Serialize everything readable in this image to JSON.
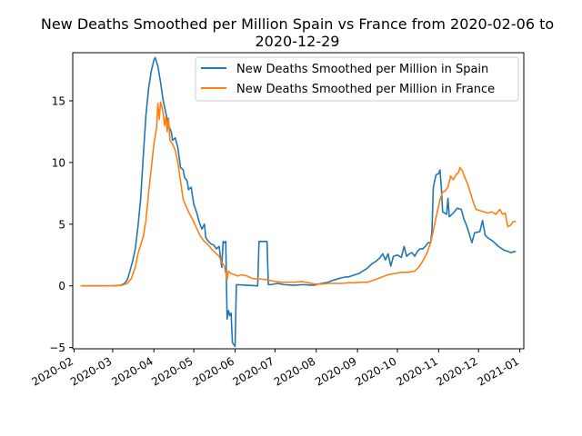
{
  "chart_data": {
    "type": "line",
    "title_line1": "New Deaths Smoothed per Million Spain vs France from 2020-02-06 to",
    "title_line2": "2020-12-29",
    "xlabel": "",
    "ylabel": "",
    "xlim": [
      "2020-01-31",
      "2021-01-04"
    ],
    "ylim": [
      -5.1,
      18.9
    ],
    "y_ticks": [
      -5,
      0,
      5,
      10,
      15
    ],
    "x_ticks": [
      {
        "date": "2020-02-01",
        "label": "2020-02"
      },
      {
        "date": "2020-03-01",
        "label": "2020-03"
      },
      {
        "date": "2020-04-01",
        "label": "2020-04"
      },
      {
        "date": "2020-05-01",
        "label": "2020-05"
      },
      {
        "date": "2020-06-01",
        "label": "2020-06"
      },
      {
        "date": "2020-07-01",
        "label": "2020-07"
      },
      {
        "date": "2020-08-01",
        "label": "2020-08"
      },
      {
        "date": "2020-09-01",
        "label": "2020-09"
      },
      {
        "date": "2020-10-01",
        "label": "2020-10"
      },
      {
        "date": "2020-11-01",
        "label": "2020-11"
      },
      {
        "date": "2020-12-01",
        "label": "2020-12"
      },
      {
        "date": "2021-01-01",
        "label": "2021-01"
      }
    ],
    "grid": false,
    "legend_position": "top-right",
    "series": [
      {
        "name": "New Deaths Smoothed per Million in Spain",
        "color": "#1f77b4",
        "points": [
          [
            "2020-02-06",
            0.0
          ],
          [
            "2020-03-01",
            0.0
          ],
          [
            "2020-03-07",
            0.05
          ],
          [
            "2020-03-10",
            0.2
          ],
          [
            "2020-03-12",
            0.5
          ],
          [
            "2020-03-14",
            1.2
          ],
          [
            "2020-03-16",
            2.0
          ],
          [
            "2020-03-18",
            3.0
          ],
          [
            "2020-03-20",
            4.8
          ],
          [
            "2020-03-22",
            7.0
          ],
          [
            "2020-03-24",
            10.5
          ],
          [
            "2020-03-26",
            13.8
          ],
          [
            "2020-03-28",
            16.0
          ],
          [
            "2020-03-30",
            17.4
          ],
          [
            "2020-04-01",
            18.3
          ],
          [
            "2020-04-02",
            18.5
          ],
          [
            "2020-04-04",
            17.8
          ],
          [
            "2020-04-06",
            16.5
          ],
          [
            "2020-04-08",
            15.0
          ],
          [
            "2020-04-10",
            14.0
          ],
          [
            "2020-04-12",
            13.0
          ],
          [
            "2020-04-14",
            12.5
          ],
          [
            "2020-04-15",
            11.8
          ],
          [
            "2020-04-17",
            12.0
          ],
          [
            "2020-04-19",
            11.2
          ],
          [
            "2020-04-21",
            9.6
          ],
          [
            "2020-04-23",
            9.4
          ],
          [
            "2020-04-24",
            8.8
          ],
          [
            "2020-04-26",
            8.5
          ],
          [
            "2020-04-27",
            7.8
          ],
          [
            "2020-04-29",
            8.0
          ],
          [
            "2020-05-01",
            6.6
          ],
          [
            "2020-05-03",
            6.0
          ],
          [
            "2020-05-05",
            5.2
          ],
          [
            "2020-05-07",
            4.6
          ],
          [
            "2020-05-09",
            5.0
          ],
          [
            "2020-05-10",
            3.9
          ],
          [
            "2020-05-12",
            3.6
          ],
          [
            "2020-05-14",
            3.4
          ],
          [
            "2020-05-16",
            3.3
          ],
          [
            "2020-05-18",
            3.0
          ],
          [
            "2020-05-20",
            3.2
          ],
          [
            "2020-05-22",
            1.5
          ],
          [
            "2020-05-23",
            3.6
          ],
          [
            "2020-05-24",
            3.5
          ],
          [
            "2020-05-25",
            3.6
          ],
          [
            "2020-05-26",
            -2.7
          ],
          [
            "2020-05-27",
            -2.0
          ],
          [
            "2020-05-28",
            -2.4
          ],
          [
            "2020-05-29",
            -2.2
          ],
          [
            "2020-05-30",
            -4.6
          ],
          [
            "2020-06-01",
            -4.9
          ],
          [
            "2020-06-02",
            0.1
          ],
          [
            "2020-06-10",
            0.05
          ],
          [
            "2020-06-18",
            0.0
          ],
          [
            "2020-06-19",
            3.6
          ],
          [
            "2020-06-25",
            3.6
          ],
          [
            "2020-06-26",
            0.1
          ],
          [
            "2020-06-28",
            0.1
          ],
          [
            "2020-07-03",
            0.2
          ],
          [
            "2020-07-08",
            0.1
          ],
          [
            "2020-07-15",
            0.05
          ],
          [
            "2020-07-22",
            0.1
          ],
          [
            "2020-07-30",
            0.05
          ],
          [
            "2020-08-05",
            0.2
          ],
          [
            "2020-08-10",
            0.3
          ],
          [
            "2020-08-15",
            0.5
          ],
          [
            "2020-08-18",
            0.6
          ],
          [
            "2020-08-22",
            0.7
          ],
          [
            "2020-08-26",
            0.75
          ],
          [
            "2020-08-30",
            0.9
          ],
          [
            "2020-09-02",
            1.0
          ],
          [
            "2020-09-05",
            1.2
          ],
          [
            "2020-09-08",
            1.4
          ],
          [
            "2020-09-12",
            1.8
          ],
          [
            "2020-09-15",
            2.0
          ],
          [
            "2020-09-18",
            2.3
          ],
          [
            "2020-09-20",
            2.6
          ],
          [
            "2020-09-22",
            2.1
          ],
          [
            "2020-09-24",
            2.6
          ],
          [
            "2020-09-26",
            1.6
          ],
          [
            "2020-09-28",
            2.4
          ],
          [
            "2020-10-01",
            2.5
          ],
          [
            "2020-10-04",
            2.3
          ],
          [
            "2020-10-06",
            3.2
          ],
          [
            "2020-10-08",
            2.4
          ],
          [
            "2020-10-10",
            2.6
          ],
          [
            "2020-10-12",
            2.7
          ],
          [
            "2020-10-14",
            2.4
          ],
          [
            "2020-10-16",
            2.8
          ],
          [
            "2020-10-18",
            3.0
          ],
          [
            "2020-10-20",
            3.0
          ],
          [
            "2020-10-22",
            3.2
          ],
          [
            "2020-10-24",
            3.5
          ],
          [
            "2020-10-26",
            3.5
          ],
          [
            "2020-10-27",
            4.5
          ],
          [
            "2020-10-28",
            8.0
          ],
          [
            "2020-10-30",
            9.0
          ],
          [
            "2020-11-01",
            9.1
          ],
          [
            "2020-11-02",
            9.4
          ],
          [
            "2020-11-03",
            8.0
          ],
          [
            "2020-11-04",
            6.0
          ],
          [
            "2020-11-07",
            5.8
          ],
          [
            "2020-11-08",
            7.1
          ],
          [
            "2020-11-09",
            5.6
          ],
          [
            "2020-11-12",
            5.9
          ],
          [
            "2020-11-15",
            6.3
          ],
          [
            "2020-11-18",
            6.2
          ],
          [
            "2020-11-20",
            5.4
          ],
          [
            "2020-11-22",
            4.9
          ],
          [
            "2020-11-24",
            4.2
          ],
          [
            "2020-11-26",
            3.5
          ],
          [
            "2020-11-28",
            4.3
          ],
          [
            "2020-12-02",
            4.4
          ],
          [
            "2020-12-04",
            5.3
          ],
          [
            "2020-12-06",
            4.1
          ],
          [
            "2020-12-08",
            3.9
          ],
          [
            "2020-12-12",
            3.6
          ],
          [
            "2020-12-16",
            3.2
          ],
          [
            "2020-12-20",
            2.9
          ],
          [
            "2020-12-23",
            2.8
          ],
          [
            "2020-12-25",
            2.7
          ],
          [
            "2020-12-29",
            2.8
          ]
        ]
      },
      {
        "name": "New Deaths Smoothed per Million in France",
        "color": "#ff7f0e",
        "points": [
          [
            "2020-02-06",
            0.0
          ],
          [
            "2020-03-01",
            0.0
          ],
          [
            "2020-03-08",
            0.05
          ],
          [
            "2020-03-12",
            0.2
          ],
          [
            "2020-03-15",
            0.6
          ],
          [
            "2020-03-18",
            1.5
          ],
          [
            "2020-03-20",
            2.6
          ],
          [
            "2020-03-22",
            3.3
          ],
          [
            "2020-03-24",
            4.0
          ],
          [
            "2020-03-26",
            5.3
          ],
          [
            "2020-03-28",
            7.5
          ],
          [
            "2020-03-30",
            9.5
          ],
          [
            "2020-04-01",
            11.5
          ],
          [
            "2020-04-03",
            12.8
          ],
          [
            "2020-04-04",
            14.8
          ],
          [
            "2020-04-05",
            13.5
          ],
          [
            "2020-04-06",
            14.9
          ],
          [
            "2020-04-07",
            14.5
          ],
          [
            "2020-04-08",
            14.0
          ],
          [
            "2020-04-09",
            13.0
          ],
          [
            "2020-04-10",
            13.7
          ],
          [
            "2020-04-11",
            12.5
          ],
          [
            "2020-04-12",
            13.6
          ],
          [
            "2020-04-13",
            11.8
          ],
          [
            "2020-04-15",
            11.5
          ],
          [
            "2020-04-17",
            11.0
          ],
          [
            "2020-04-19",
            10.0
          ],
          [
            "2020-04-21",
            8.5
          ],
          [
            "2020-04-23",
            7.0
          ],
          [
            "2020-04-25",
            6.5
          ],
          [
            "2020-04-27",
            6.0
          ],
          [
            "2020-04-30",
            5.4
          ],
          [
            "2020-05-03",
            4.7
          ],
          [
            "2020-05-06",
            4.0
          ],
          [
            "2020-05-09",
            3.6
          ],
          [
            "2020-05-12",
            3.3
          ],
          [
            "2020-05-15",
            2.9
          ],
          [
            "2020-05-18",
            2.6
          ],
          [
            "2020-05-20",
            2.4
          ],
          [
            "2020-05-22",
            1.9
          ],
          [
            "2020-05-24",
            1.6
          ],
          [
            "2020-05-26",
            0.5
          ],
          [
            "2020-05-27",
            1.2
          ],
          [
            "2020-05-29",
            1.0
          ],
          [
            "2020-06-01",
            0.9
          ],
          [
            "2020-06-03",
            0.8
          ],
          [
            "2020-06-06",
            0.9
          ],
          [
            "2020-06-10",
            0.8
          ],
          [
            "2020-06-14",
            0.6
          ],
          [
            "2020-06-20",
            0.55
          ],
          [
            "2020-06-25",
            0.5
          ],
          [
            "2020-07-01",
            0.35
          ],
          [
            "2020-07-06",
            0.3
          ],
          [
            "2020-07-11",
            0.3
          ],
          [
            "2020-07-16",
            0.3
          ],
          [
            "2020-07-21",
            0.35
          ],
          [
            "2020-07-26",
            0.25
          ],
          [
            "2020-07-31",
            0.15
          ],
          [
            "2020-08-05",
            0.15
          ],
          [
            "2020-08-10",
            0.2
          ],
          [
            "2020-08-15",
            0.2
          ],
          [
            "2020-08-20",
            0.2
          ],
          [
            "2020-08-25",
            0.25
          ],
          [
            "2020-08-30",
            0.25
          ],
          [
            "2020-09-04",
            0.3
          ],
          [
            "2020-09-09",
            0.3
          ],
          [
            "2020-09-14",
            0.5
          ],
          [
            "2020-09-19",
            0.7
          ],
          [
            "2020-09-24",
            0.9
          ],
          [
            "2020-09-29",
            1.0
          ],
          [
            "2020-10-04",
            1.1
          ],
          [
            "2020-10-09",
            1.1
          ],
          [
            "2020-10-14",
            1.2
          ],
          [
            "2020-10-17",
            1.5
          ],
          [
            "2020-10-20",
            2.0
          ],
          [
            "2020-10-23",
            2.6
          ],
          [
            "2020-10-26",
            3.5
          ],
          [
            "2020-10-28",
            4.5
          ],
          [
            "2020-10-31",
            6.0
          ],
          [
            "2020-11-02",
            7.0
          ],
          [
            "2020-11-04",
            7.6
          ],
          [
            "2020-11-06",
            7.7
          ],
          [
            "2020-11-08",
            8.0
          ],
          [
            "2020-11-10",
            8.9
          ],
          [
            "2020-11-12",
            8.6
          ],
          [
            "2020-11-14",
            9.0
          ],
          [
            "2020-11-16",
            9.2
          ],
          [
            "2020-11-17",
            9.6
          ],
          [
            "2020-11-19",
            9.3
          ],
          [
            "2020-11-21",
            8.7
          ],
          [
            "2020-11-23",
            8.2
          ],
          [
            "2020-11-25",
            7.5
          ],
          [
            "2020-11-27",
            6.8
          ],
          [
            "2020-11-29",
            6.2
          ],
          [
            "2020-12-02",
            6.1
          ],
          [
            "2020-12-05",
            6.0
          ],
          [
            "2020-12-08",
            5.9
          ],
          [
            "2020-12-11",
            6.0
          ],
          [
            "2020-12-14",
            5.8
          ],
          [
            "2020-12-17",
            6.2
          ],
          [
            "2020-12-19",
            5.8
          ],
          [
            "2020-12-21",
            5.9
          ],
          [
            "2020-12-23",
            4.8
          ],
          [
            "2020-12-25",
            4.9
          ],
          [
            "2020-12-27",
            5.2
          ],
          [
            "2020-12-29",
            5.2
          ]
        ]
      }
    ]
  }
}
